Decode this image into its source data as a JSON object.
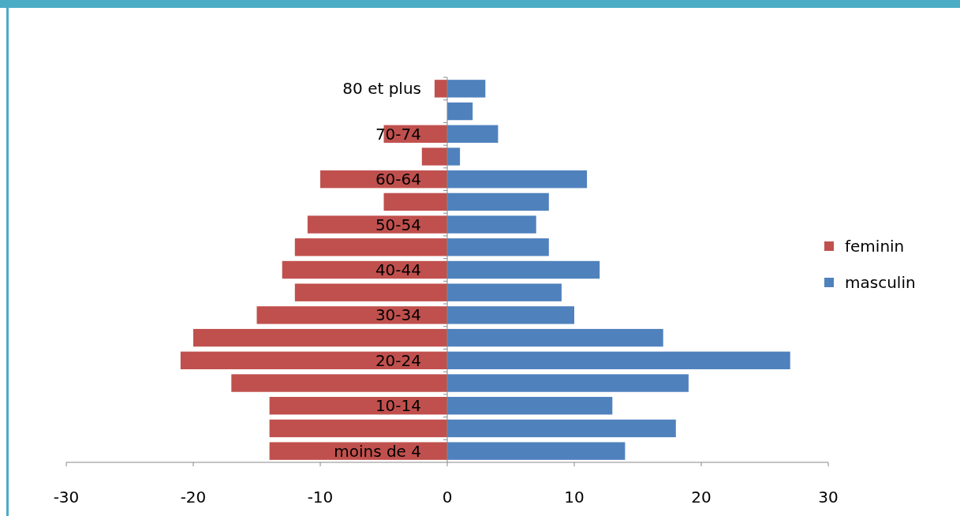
{
  "chart_data": {
    "type": "bar",
    "orientation": "horizontal",
    "stacked": true,
    "categories": [
      "80 et plus",
      null,
      "70-74",
      null,
      "60-64",
      null,
      "50-54",
      null,
      "40-44",
      null,
      "30-34",
      null,
      "20-24",
      null,
      "10-14",
      null,
      "moins de 4"
    ],
    "series": [
      {
        "name": "feminin",
        "color": "#c0504d",
        "values": [
          -1,
          null,
          -5,
          -2,
          -10,
          -5,
          -11,
          -12,
          -13,
          -12,
          -15,
          -20,
          -21,
          -17,
          -14,
          -14,
          -14
        ]
      },
      {
        "name": "masculin",
        "color": "#4f81bd",
        "values": [
          3,
          2,
          4,
          1,
          11,
          8,
          7,
          8,
          12,
          9,
          10,
          17,
          27,
          19,
          13,
          18,
          14
        ]
      }
    ],
    "xlim": [
      -30,
      30
    ],
    "xticks": [
      -30,
      -20,
      -10,
      0,
      10,
      20,
      30
    ],
    "legend": "right"
  }
}
